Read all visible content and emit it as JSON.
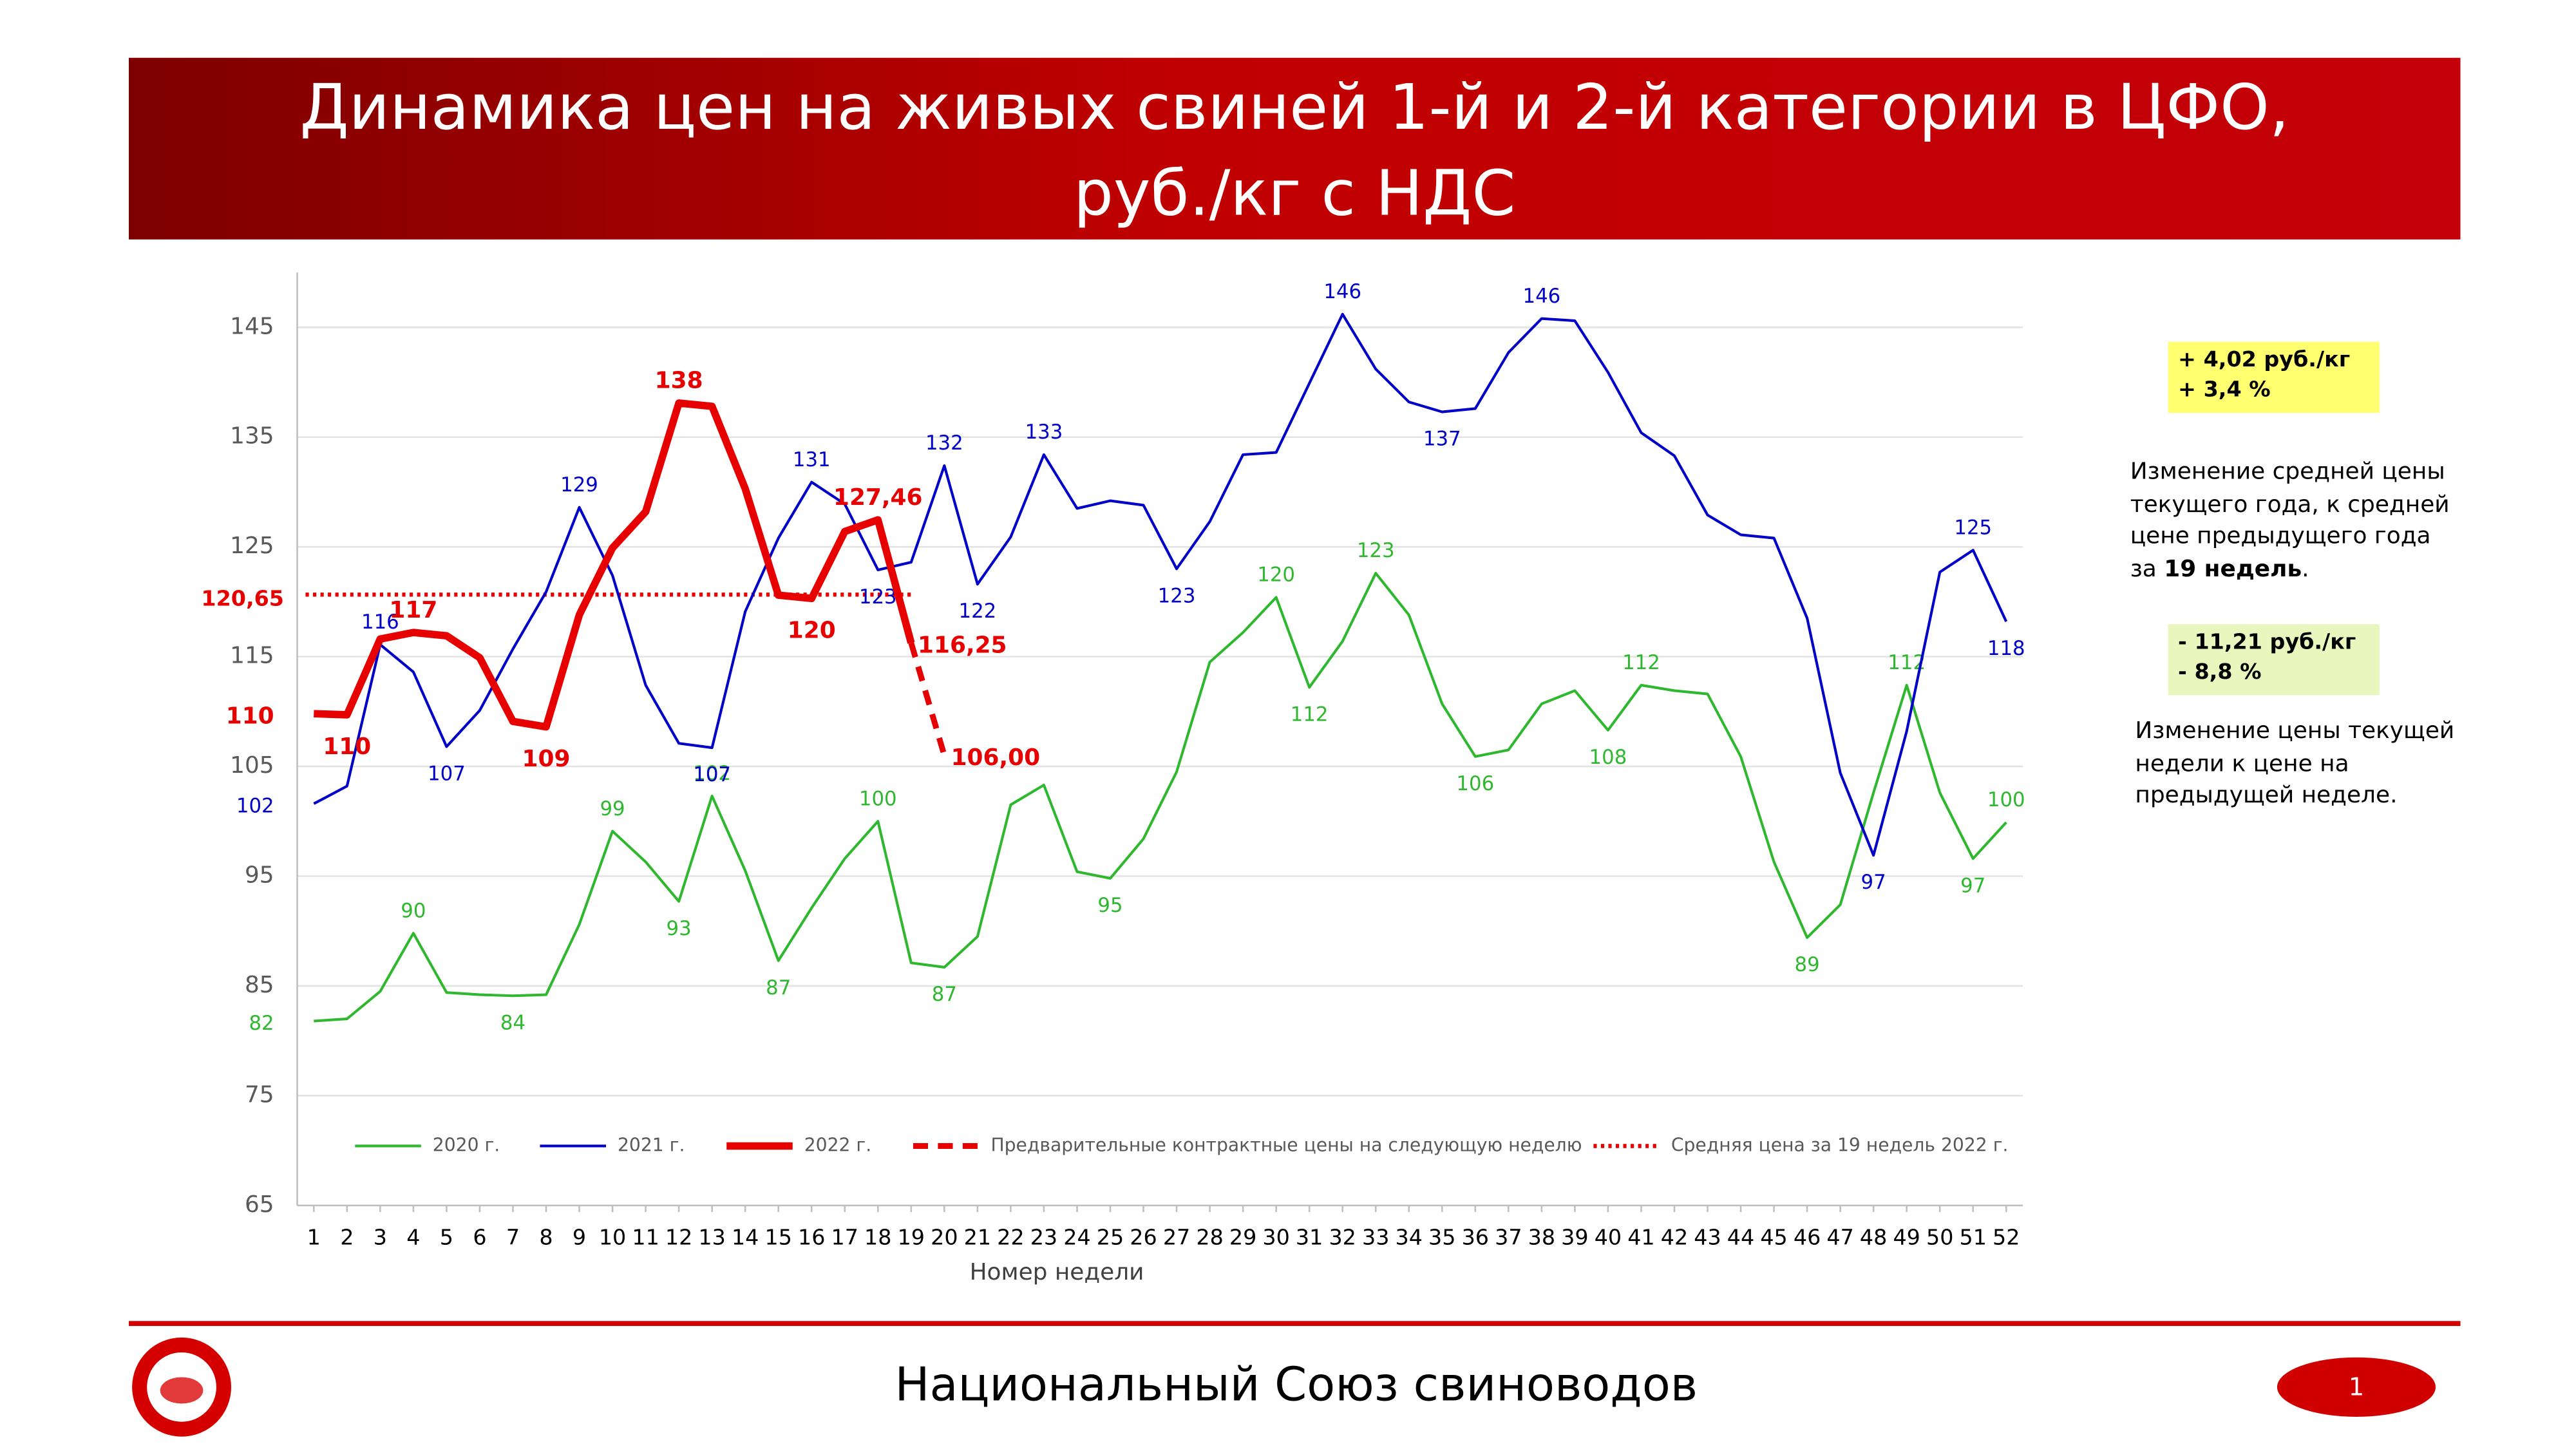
{
  "header": {
    "title": [
      "Динамика цен на живых свиней 1-й и 2-й категории в ЦФО,",
      "руб./кг с НДС"
    ]
  },
  "chart_data": {
    "type": "line",
    "x": [
      1,
      2,
      3,
      4,
      5,
      6,
      7,
      8,
      9,
      10,
      11,
      12,
      13,
      14,
      15,
      16,
      17,
      18,
      19,
      20,
      21,
      22,
      23,
      24,
      25,
      26,
      27,
      28,
      29,
      30,
      31,
      32,
      33,
      34,
      35,
      36,
      37,
      38,
      39,
      40,
      41,
      42,
      43,
      44,
      45,
      46,
      47,
      48,
      49,
      50,
      51,
      52
    ],
    "xlim": [
      0.5,
      52.5
    ],
    "x_label": "Номер недели",
    "ylim": [
      65,
      150
    ],
    "yticks": [
      65,
      75,
      85,
      95,
      105,
      115,
      125,
      135,
      145
    ],
    "grid": true,
    "legend": "bottom",
    "series": [
      {
        "name": "2020 г.",
        "color": "#2fb82f",
        "line_style": "solid",
        "values": [
          81.8,
          82,
          84.5,
          89.8,
          84.4,
          84.2,
          84.1,
          84.2,
          90.6,
          99.1,
          96.3,
          92.7,
          102.3,
          95.5,
          87.3,
          92.1,
          96.6,
          100,
          87.1,
          86.7,
          89.5,
          101.5,
          103.3,
          95.4,
          94.8,
          98.4,
          104.5,
          114.5,
          117.2,
          120.4,
          112.2,
          116.4,
          122.6,
          118.8,
          110.7,
          105.9,
          106.5,
          110.7,
          111.9,
          108.3,
          112.4,
          111.9,
          111.6,
          105.9,
          96.3,
          89.4,
          92.4,
          102.6,
          112.4,
          102.6,
          96.6,
          99.9
        ],
        "value_labels": [
          "82",
          null,
          null,
          "90",
          null,
          null,
          "84",
          null,
          null,
          "99",
          null,
          "93",
          "102",
          null,
          "87",
          null,
          null,
          "100",
          null,
          "87",
          null,
          null,
          null,
          null,
          "95",
          null,
          null,
          null,
          null,
          "120",
          "112",
          null,
          "123",
          null,
          null,
          "106",
          null,
          null,
          null,
          "108",
          "112",
          null,
          null,
          null,
          null,
          "89",
          null,
          null,
          "112",
          null,
          "97",
          "100"
        ]
      },
      {
        "name": "2021 г.",
        "color": "#0000c8",
        "line_style": "solid",
        "values": [
          101.6,
          103.2,
          116.1,
          113.6,
          106.8,
          110.1,
          115.7,
          120.9,
          128.6,
          122.4,
          112.4,
          107.1,
          106.7,
          119.1,
          125.8,
          130.9,
          128.9,
          122.9,
          123.6,
          132.4,
          121.6,
          125.9,
          133.4,
          128.5,
          129.2,
          128.8,
          123.0,
          127.3,
          133.4,
          133.6,
          139.9,
          146.2,
          141.2,
          138.2,
          137.3,
          137.6,
          142.7,
          145.8,
          145.6,
          140.9,
          135.4,
          133.3,
          127.9,
          126.1,
          125.8,
          118.5,
          104.4,
          96.9,
          108.2,
          122.7,
          124.7,
          118.2
        ],
        "value_labels": [
          "102",
          null,
          "116",
          null,
          "107",
          null,
          null,
          null,
          "129",
          null,
          null,
          null,
          "107",
          null,
          null,
          "131",
          null,
          "123",
          null,
          "132",
          "122",
          null,
          "133",
          null,
          null,
          null,
          "123",
          null,
          null,
          null,
          null,
          "146",
          null,
          null,
          "137",
          null,
          null,
          "146",
          null,
          null,
          null,
          null,
          null,
          null,
          null,
          null,
          null,
          "97",
          null,
          null,
          "125",
          "118"
        ]
      },
      {
        "name": "2022 г.",
        "color": "#e60000",
        "line_style": "solid",
        "x": [
          1,
          2,
          3,
          4,
          5,
          6,
          7,
          8,
          9,
          10,
          11,
          12,
          13,
          14,
          15,
          16,
          17,
          18,
          19
        ],
        "values": [
          109.8,
          109.7,
          116.6,
          117.2,
          116.9,
          114.9,
          109.1,
          108.6,
          118.8,
          124.9,
          128.2,
          138.1,
          137.8,
          130.3,
          120.6,
          120.3,
          126.4,
          127.46,
          116.25
        ],
        "value_labels": [
          "110",
          "110",
          null,
          "117",
          null,
          null,
          null,
          "109",
          null,
          null,
          null,
          "138",
          null,
          null,
          null,
          "120",
          null,
          "127,46",
          "116,25"
        ]
      },
      {
        "name": "Предварительные контрактные цены на следующую неделю",
        "color": "#e60000",
        "line_style": "dashed",
        "x": [
          19,
          20
        ],
        "values": [
          116.25,
          106.0
        ],
        "value_labels": [
          null,
          "106,00"
        ]
      }
    ],
    "reference_lines": [
      {
        "name": "Средняя цена за 19 недель 2022 г.",
        "color": "#e60000",
        "line_style": "dotted",
        "value": 120.65,
        "value_label": "120,65",
        "x": [
          1,
          19
        ]
      }
    ]
  },
  "notes": [
    {
      "box": [
        "+ 4,02 руб./кг",
        "+ 3,4 %"
      ],
      "text": [
        "Изменение средней цены текущего года, к средней цене предыдущего года за ",
        "19 недель",
        "."
      ]
    },
    {
      "box": [
        "- 11,21 руб./кг",
        "- 8,8 %"
      ],
      "text": [
        "Изменение цены текущей недели к цене на предыдущей неделе."
      ]
    }
  ],
  "footer": {
    "organization": "Национальный Союз свиноводов",
    "page": "1"
  }
}
